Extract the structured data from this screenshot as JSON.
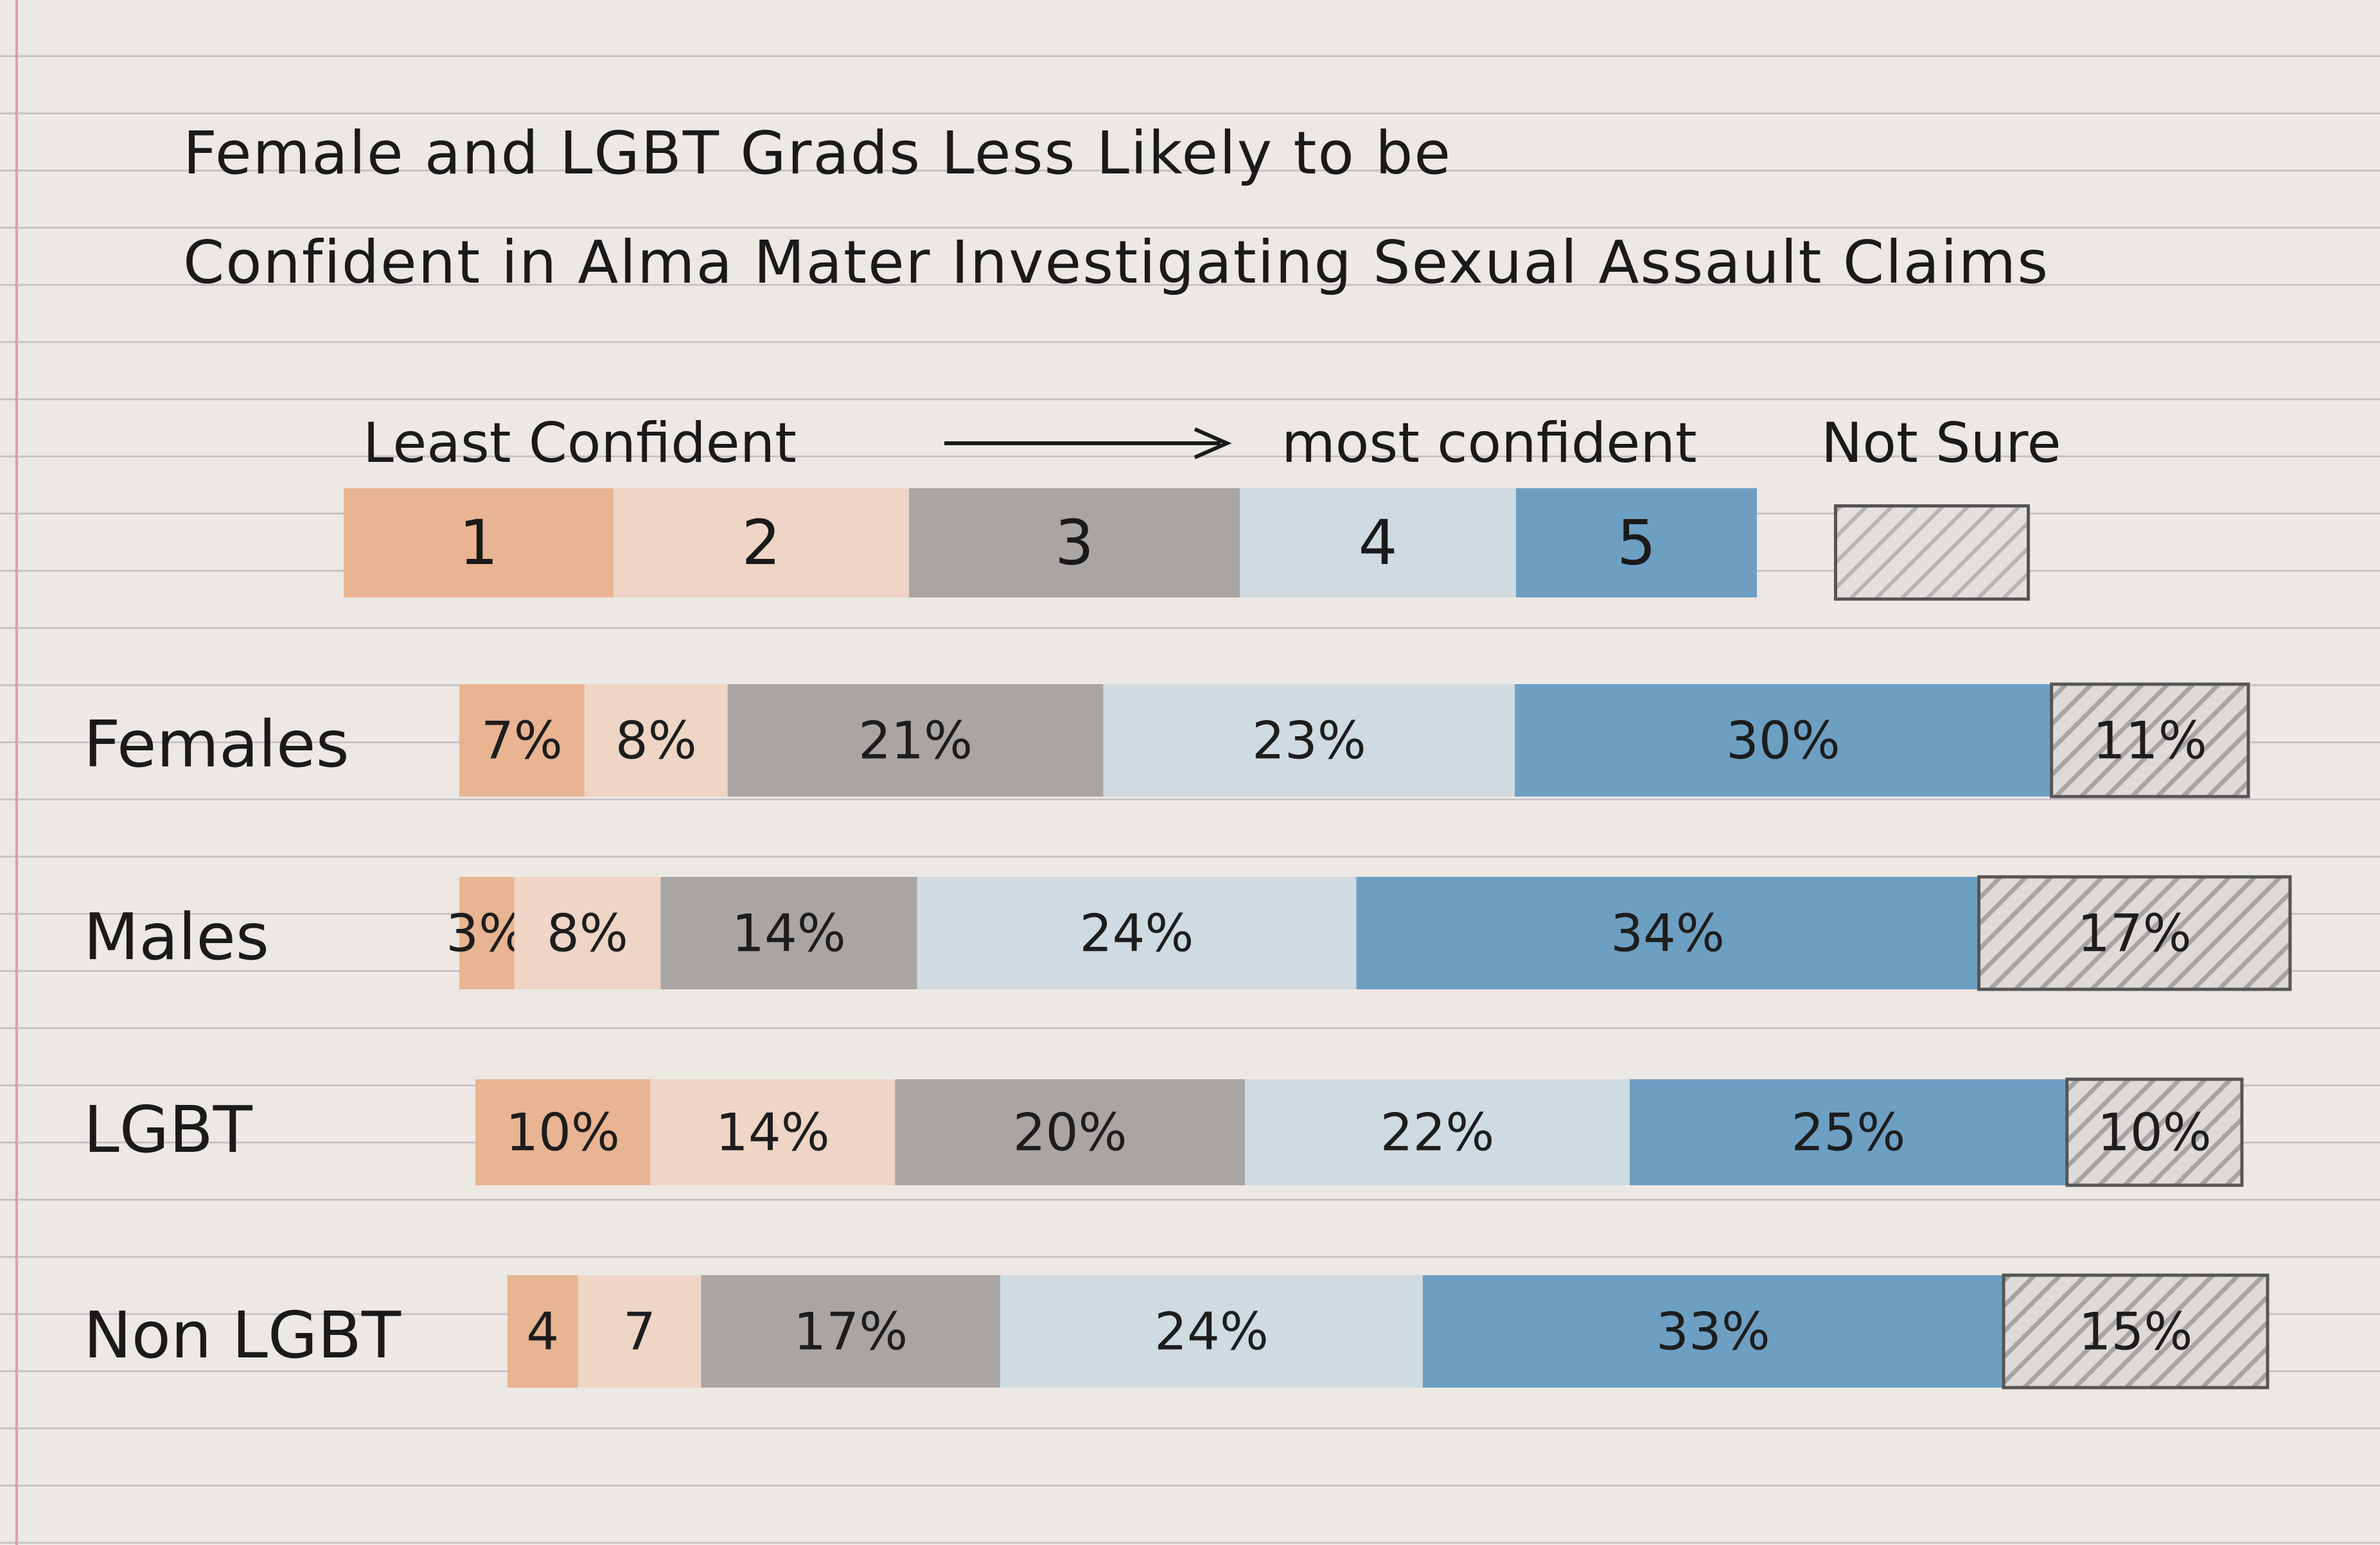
{
  "chart_data": {
    "type": "bar",
    "orientation": "horizontal",
    "stacked": true,
    "title": "Female and LGBT Grads Less Likely to be Confident in Alma Mater Investigating Sexual Assault Claims",
    "title_lines": [
      "Female and LGBT Grads Less Likely to be",
      "Confident in Alma Mater Investigating Sexual Assault Claims"
    ],
    "scale": {
      "least_label": "Least Confident",
      "most_label": "most confident",
      "not_sure_label": "Not Sure",
      "levels": [
        "1",
        "2",
        "3",
        "4",
        "5"
      ]
    },
    "categories": [
      "Females",
      "Males",
      "LGBT",
      "Non LGBT"
    ],
    "series": [
      {
        "name": "1",
        "values": [
          7,
          3,
          10,
          4
        ],
        "color": "#e8b491"
      },
      {
        "name": "2",
        "values": [
          8,
          8,
          14,
          7
        ],
        "color": "#eed5c5"
      },
      {
        "name": "3",
        "values": [
          21,
          14,
          20,
          17
        ],
        "color": "#a9a5a3"
      },
      {
        "name": "4",
        "values": [
          23,
          24,
          22,
          24
        ],
        "color": "#cfdbe1"
      },
      {
        "name": "5",
        "values": [
          30,
          34,
          25,
          33
        ],
        "color": "#6d9fc3"
      },
      {
        "name": "Not Sure",
        "values": [
          11,
          17,
          10,
          15
        ],
        "color": "#d2cfcc",
        "pattern": "hatch"
      }
    ],
    "value_labels": [
      [
        "7%",
        "8%",
        "21%",
        "23%",
        "30%",
        "11%"
      ],
      [
        "3%",
        "8%",
        "14%",
        "24%",
        "34%",
        "17%"
      ],
      [
        "10%",
        "14%",
        "20%",
        "22%",
        "25%",
        "10%"
      ],
      [
        "4",
        "7",
        "17%",
        "24%",
        "33%",
        "15%"
      ]
    ],
    "xlim": [
      0,
      100
    ],
    "grid": false,
    "legend_position": "top"
  }
}
